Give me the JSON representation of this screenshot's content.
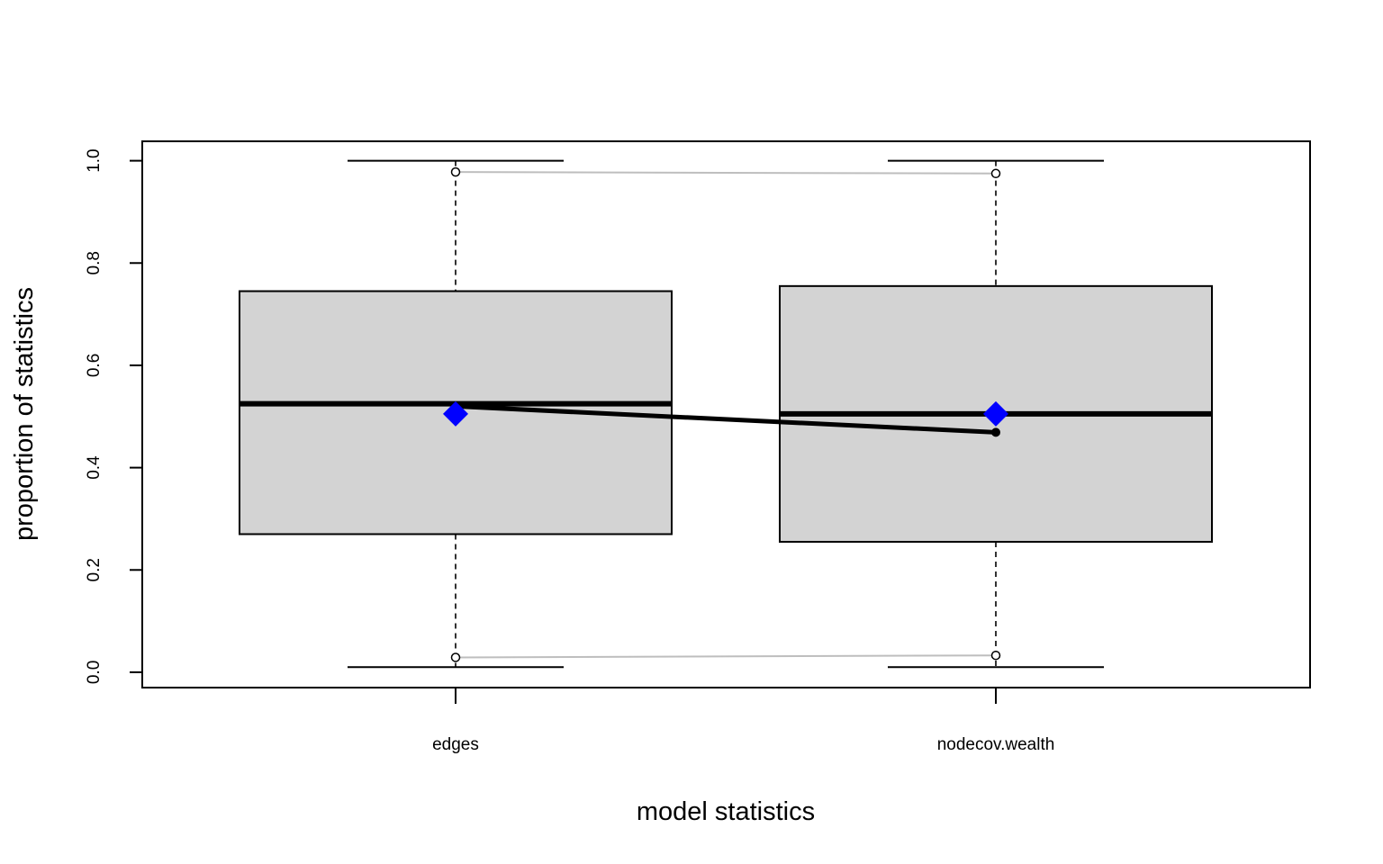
{
  "chart_data": {
    "type": "boxplot",
    "title": "",
    "xlabel": "model statistics",
    "ylabel": "proportion of statistics",
    "categories": [
      "edges",
      "nodecov.wealth"
    ],
    "ylim": [
      -0.03,
      1.038
    ],
    "yticks": [
      0.0,
      0.2,
      0.4,
      0.6,
      0.8,
      1.0
    ],
    "ytick_labels": [
      "0.0",
      "0.2",
      "0.4",
      "0.6",
      "0.8",
      "1.0"
    ],
    "grid": false,
    "legend": "none",
    "boxes": [
      {
        "category": "edges",
        "whisker_low": 0.01,
        "q1": 0.27,
        "median": 0.525,
        "q3": 0.745,
        "whisker_high": 1.0
      },
      {
        "category": "nodecov.wealth",
        "whisker_low": 0.01,
        "q1": 0.255,
        "median": 0.505,
        "q3": 0.755,
        "whisker_high": 1.0
      }
    ],
    "observed_line": {
      "values": [
        0.52,
        0.469
      ],
      "color": "#000000"
    },
    "observed_markers": {
      "values": [
        0.505,
        0.505
      ],
      "color": "#0000ff",
      "shape": "diamond"
    },
    "upper_interval_line": {
      "values": [
        0.978,
        0.975
      ],
      "color": "#bebebe"
    },
    "lower_interval_line": {
      "values": [
        0.029,
        0.033
      ],
      "color": "#bebebe"
    },
    "colors": {
      "box_fill": "#d3d3d3",
      "frame": "#000000"
    }
  }
}
